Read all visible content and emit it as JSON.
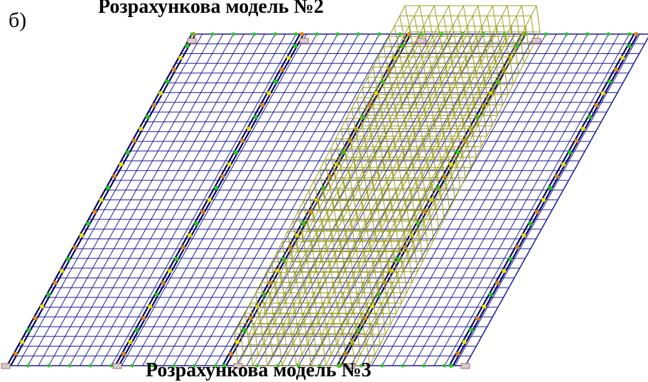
{
  "panel_letter": "б)",
  "caption_top": "Розрахункова модель №2",
  "caption_bottom": "Розрахункова модель №3",
  "colors": {
    "slab_grid": "#1c1c9c",
    "beam_line": "#000060",
    "node_green": "#22cc22",
    "node_orange": "#e08a1a",
    "node_yellow": "#f0e000",
    "frame": "#9c9c1c",
    "support": "#c06060"
  },
  "icons": {
    "support": "support-icon",
    "node": "node-marker"
  }
}
